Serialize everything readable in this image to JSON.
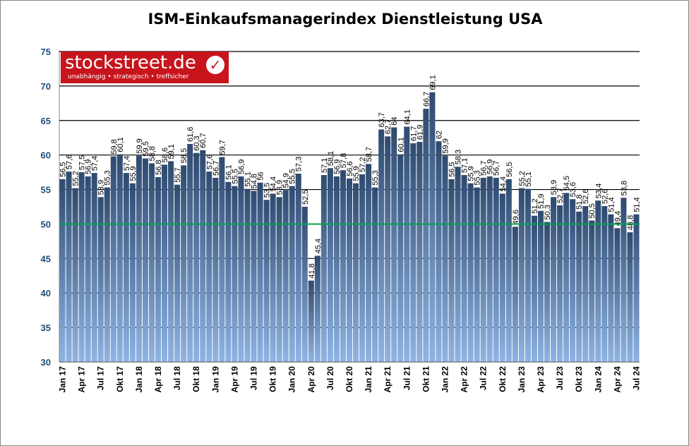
{
  "chart_data": {
    "type": "bar",
    "title": "ISM-Einkaufsmanagerindex Dienstleistung USA",
    "ylim": [
      30,
      75
    ],
    "yticks": [
      30,
      35,
      40,
      45,
      50,
      55,
      60,
      65,
      70,
      75
    ],
    "reference_line": {
      "value": 50,
      "color": "#00a651"
    },
    "grid": true,
    "bar_color_top": "#2e4a70",
    "bar_color_bottom": "#8fb4e3",
    "x_tick_labels": [
      "Jan 17",
      "Apr 17",
      "Jul 17",
      "Okt 17",
      "Jan 18",
      "Apr 18",
      "Jul 18",
      "Okt 18",
      "Jan 19",
      "Apr 19",
      "Jul 19",
      "Okt 19",
      "Jan 20",
      "Apr 20",
      "Jul 20",
      "Okt 20",
      "Jan 21",
      "Apr 21",
      "Jul 21",
      "Okt 21",
      "Jan 22",
      "Apr 22",
      "Jul 22",
      "Okt 22",
      "Jan 23",
      "Apr 23",
      "Jul 23",
      "Okt 23",
      "Jan 24",
      "Apr 24",
      "Jul 24"
    ],
    "values": [
      56.5,
      57.6,
      55.2,
      57.5,
      56.9,
      57.4,
      53.9,
      55.3,
      59.8,
      60.1,
      57.4,
      55.9,
      59.9,
      59.5,
      58.8,
      56.8,
      58.6,
      59.1,
      55.7,
      58.5,
      61.6,
      60.3,
      60.7,
      57.6,
      56.7,
      59.7,
      56.1,
      55.5,
      56.9,
      55.1,
      54.8,
      56,
      53.5,
      54.4,
      53.9,
      54.9,
      55.5,
      57.3,
      52.5,
      41.8,
      45.4,
      57.1,
      58.1,
      56.9,
      57.8,
      56.6,
      55.9,
      57.2,
      58.7,
      55.3,
      63.7,
      62.7,
      64,
      60.1,
      64.1,
      61.7,
      61.9,
      66.7,
      69.1,
      62,
      59.9,
      56.5,
      58.3,
      57.1,
      55.9,
      55.3,
      56.7,
      56.9,
      56.7,
      54.4,
      56.5,
      49.6,
      55.2,
      55.1,
      51.2,
      51.9,
      50.3,
      53.9,
      52.7,
      54.5,
      53.6,
      51.8,
      52.6,
      50.5,
      53.4,
      52.6,
      51.4,
      49.4,
      53.8,
      48.8,
      51.4
    ]
  },
  "logo": {
    "brand": "stockstreet.de",
    "tagline": "unabhängig • strategisch • treffsicher"
  }
}
